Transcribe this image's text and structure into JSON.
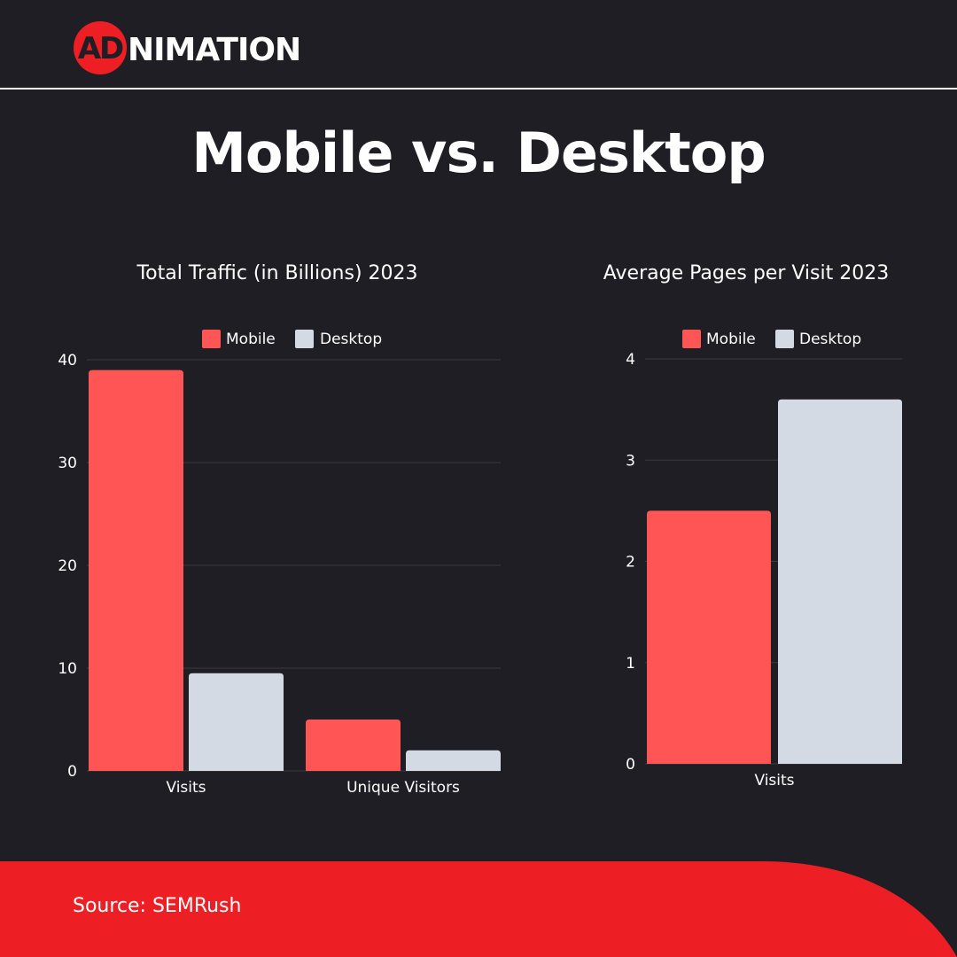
{
  "brand": {
    "logo_ad": "AD",
    "logo_rest": "NIMATION",
    "accent": "#ed1f24"
  },
  "title": "Mobile vs. Desktop",
  "colors": {
    "mobile": "#ff5555",
    "desktop": "#d4dae4",
    "grid": "#3a3940",
    "background": "#1f1e24"
  },
  "chart_data": [
    {
      "type": "bar",
      "title": "Total Traffic (in Billions) 2023",
      "categories": [
        "Visits",
        "Unique Visitors"
      ],
      "series": [
        {
          "name": "Mobile",
          "values": [
            39,
            5
          ]
        },
        {
          "name": "Desktop",
          "values": [
            9.5,
            2
          ]
        }
      ],
      "ylim": [
        0,
        40
      ],
      "yticks": [
        "0",
        "10",
        "20",
        "30",
        "40"
      ],
      "legend": "top",
      "grid": true
    },
    {
      "type": "bar",
      "title": "Average Pages per Visit 2023",
      "categories": [
        "Visits"
      ],
      "series": [
        {
          "name": "Mobile",
          "values": [
            2.5
          ]
        },
        {
          "name": "Desktop",
          "values": [
            3.6
          ]
        }
      ],
      "ylim": [
        0,
        4
      ],
      "yticks": [
        "0",
        "1",
        "2",
        "3",
        "4"
      ],
      "legend": "top",
      "grid": true
    }
  ],
  "footer": {
    "source": "Source: SEMRush"
  }
}
